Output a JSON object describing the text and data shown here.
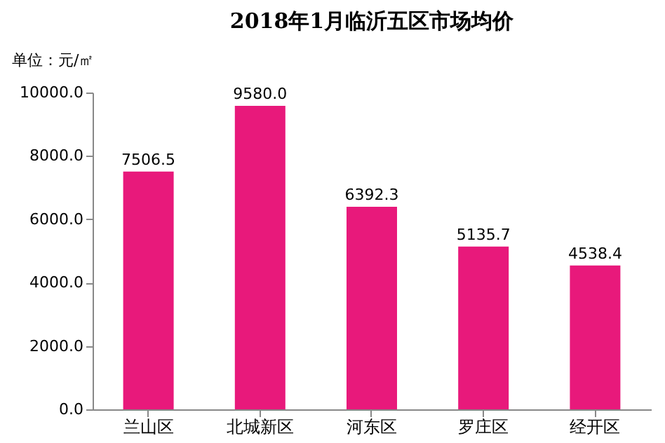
{
  "chart_data": {
    "type": "bar",
    "title": "2018年1月临沂五区市场均价",
    "ylabel": "单位：元/㎡",
    "categories": [
      "兰山区",
      "北城新区",
      "河东区",
      "罗庄区",
      "经开区"
    ],
    "values": [
      7506.5,
      9580.0,
      6392.3,
      5135.7,
      4538.4
    ],
    "value_labels": [
      "7506.5",
      "9580.0",
      "6392.3",
      "5135.7",
      "4538.4"
    ],
    "color": "#e8197b",
    "ylim": [
      0,
      10000
    ],
    "yticks": [
      {
        "value": 0,
        "label": "0.0"
      },
      {
        "value": 2000,
        "label": "2000.0"
      },
      {
        "value": 4000,
        "label": "4000.0"
      },
      {
        "value": 6000,
        "label": "6000.0"
      },
      {
        "value": 8000,
        "label": "8000.0"
      },
      {
        "value": 10000,
        "label": "10000.0"
      }
    ],
    "grid": false
  }
}
